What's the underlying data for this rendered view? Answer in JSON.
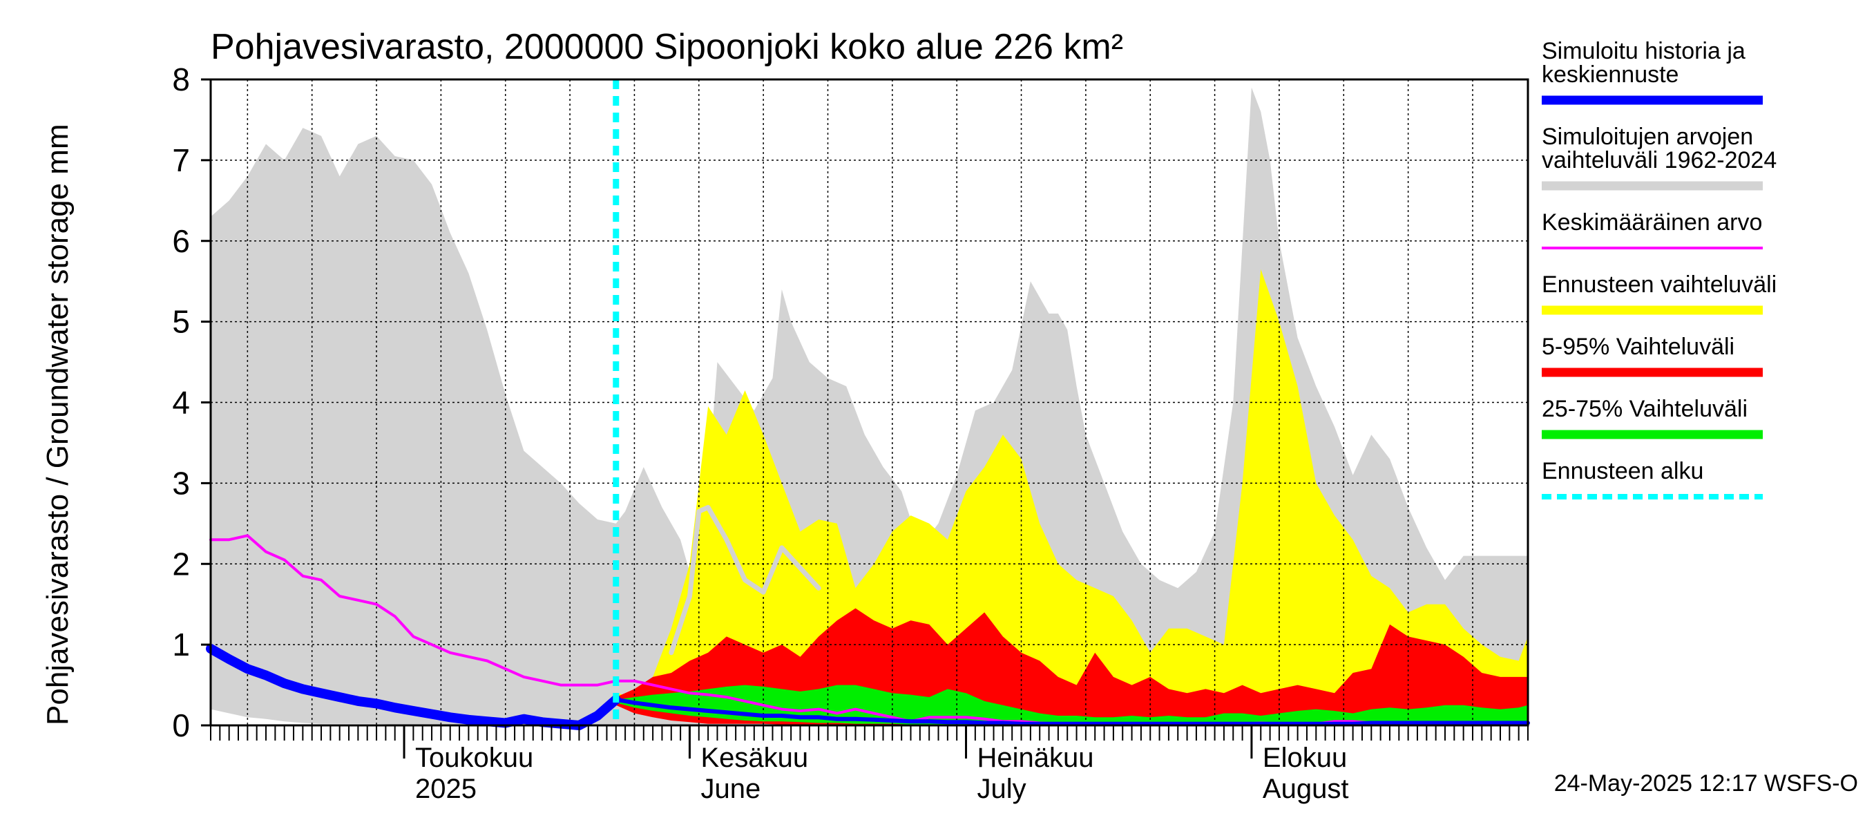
{
  "chart_data": {
    "type": "area",
    "title": "Pohjavesivarasto, 2000000 Sipoonjoki koko alue 226 km²",
    "ylabel": "Pohjavesivarasto / Groundwater storage   mm",
    "ylim": [
      0,
      8
    ],
    "yticks": [
      "0",
      "1",
      "2",
      "3",
      "4",
      "5",
      "6",
      "7",
      "8"
    ],
    "xlim": [
      "2025-04-10",
      "2025-08-31"
    ],
    "month_labels": [
      {
        "date": "2025-05-01",
        "line1": "Toukokuu",
        "line2": "2025"
      },
      {
        "date": "2025-06-01",
        "line1": "Kesäkuu",
        "line2": "June"
      },
      {
        "date": "2025-07-01",
        "line1": "Heinäkuu",
        "line2": "July"
      },
      {
        "date": "2025-08-01",
        "line1": "Elokuu",
        "line2": "August"
      }
    ],
    "forecast_start": "2025-05-24",
    "footer": "24-May-2025 12:17 WSFS-O",
    "colors": {
      "history": "#0000ff",
      "sim_range": "#d3d3d3",
      "mean": "#ff00ff",
      "forecast_range": "#ffff00",
      "p5_95": "#ff0000",
      "p25_75": "#00ee00",
      "forecast_start": "#00ffff"
    },
    "legend": [
      {
        "label": "Simuloitu historia ja",
        "label2": "keskiennuste",
        "color": "#0000ff",
        "style": "thick"
      },
      {
        "label": "Simuloitujen arvojen",
        "label2": "vaihteluväli 1962-2024",
        "color": "#d3d3d3",
        "style": "thick"
      },
      {
        "label": "Keskimääräinen arvo",
        "label2": "",
        "color": "#ff00ff",
        "style": "thin"
      },
      {
        "label": "Ennusteen vaihteluväli",
        "label2": "",
        "color": "#ffff00",
        "style": "thick"
      },
      {
        "label": "5-95% Vaihteluväli",
        "label2": "",
        "color": "#ff0000",
        "style": "thick"
      },
      {
        "label": "25-75% Vaihteluväli",
        "label2": "",
        "color": "#00ee00",
        "style": "thick"
      },
      {
        "label": "Ennusteen alku",
        "label2": "",
        "color": "#00ffff",
        "style": "dashed"
      }
    ],
    "sim_range": {
      "x": [
        "2025-04-10",
        "2025-04-12",
        "2025-04-14",
        "2025-04-16",
        "2025-04-18",
        "2025-04-20",
        "2025-04-22",
        "2025-04-24",
        "2025-04-26",
        "2025-04-28",
        "2025-04-30",
        "2025-05-02",
        "2025-05-04",
        "2025-05-06",
        "2025-05-08",
        "2025-05-10",
        "2025-05-12",
        "2025-05-14",
        "2025-05-16",
        "2025-05-18",
        "2025-05-20",
        "2025-05-22",
        "2025-05-24",
        "2025-05-25",
        "2025-05-27",
        "2025-05-29",
        "2025-05-31",
        "2025-06-02",
        "2025-06-04",
        "2025-06-06",
        "2025-06-08",
        "2025-06-10",
        "2025-06-11",
        "2025-06-12",
        "2025-06-14",
        "2025-06-16",
        "2025-06-18",
        "2025-06-20",
        "2025-06-22",
        "2025-06-24",
        "2025-06-26",
        "2025-06-28",
        "2025-06-30",
        "2025-07-02",
        "2025-07-04",
        "2025-07-06",
        "2025-07-08",
        "2025-07-10",
        "2025-07-11",
        "2025-07-12",
        "2025-07-13",
        "2025-07-14",
        "2025-07-16",
        "2025-07-18",
        "2025-07-20",
        "2025-07-22",
        "2025-07-24",
        "2025-07-26",
        "2025-07-28",
        "2025-07-30",
        "2025-08-01",
        "2025-08-02",
        "2025-08-03",
        "2025-08-04",
        "2025-08-06",
        "2025-08-08",
        "2025-08-10",
        "2025-08-12",
        "2025-08-14",
        "2025-08-16",
        "2025-08-18",
        "2025-08-20",
        "2025-08-22",
        "2025-08-24",
        "2025-08-26",
        "2025-08-28",
        "2025-08-30",
        "2025-08-31"
      ],
      "upper": [
        6.3,
        6.5,
        6.8,
        7.2,
        7.0,
        7.4,
        7.3,
        6.8,
        7.2,
        7.3,
        7.05,
        7.0,
        6.7,
        6.1,
        5.6,
        4.9,
        4.1,
        3.4,
        3.2,
        3.0,
        2.75,
        2.55,
        2.5,
        2.65,
        3.2,
        2.7,
        2.3,
        1.5,
        4.5,
        4.2,
        3.9,
        4.3,
        5.4,
        5.0,
        4.5,
        4.3,
        4.2,
        3.6,
        3.2,
        2.9,
        2.2,
        2.5,
        3.1,
        3.9,
        4.0,
        4.4,
        5.5,
        5.1,
        5.1,
        4.9,
        4.2,
        3.6,
        3.0,
        2.4,
        2.0,
        1.8,
        1.7,
        1.9,
        2.4,
        4.0,
        7.9,
        7.6,
        7.0,
        6.0,
        4.8,
        4.2,
        3.7,
        3.1,
        3.6,
        3.3,
        2.7,
        2.2,
        1.8,
        2.1,
        2.1,
        2.1,
        2.1,
        2.1
      ],
      "lower": [
        0.2,
        0.15,
        0.1,
        0.08,
        0.05,
        0.03,
        0.02,
        0.02,
        0.02,
        0.02,
        0.01,
        0.01,
        0.01,
        0.01,
        0,
        0,
        0,
        0,
        0,
        0,
        0,
        0,
        0,
        0,
        0,
        0,
        0,
        0,
        0,
        0,
        0,
        0,
        0,
        0,
        0,
        0,
        0,
        0,
        0,
        0,
        0,
        0,
        0,
        0,
        0,
        0,
        0,
        0,
        0,
        0,
        0,
        0,
        0,
        0,
        0,
        0,
        0,
        0,
        0,
        0,
        0,
        0,
        0,
        0,
        0,
        0,
        0,
        0,
        0,
        0,
        0,
        0,
        0,
        0,
        0,
        0,
        0,
        0
      ]
    },
    "mean": {
      "x": [
        "2025-04-10",
        "2025-04-12",
        "2025-04-14",
        "2025-04-16",
        "2025-04-18",
        "2025-04-20",
        "2025-04-22",
        "2025-04-24",
        "2025-04-26",
        "2025-04-28",
        "2025-04-30",
        "2025-05-02",
        "2025-05-04",
        "2025-05-06",
        "2025-05-08",
        "2025-05-10",
        "2025-05-12",
        "2025-05-14",
        "2025-05-16",
        "2025-05-18",
        "2025-05-20",
        "2025-05-22",
        "2025-05-24",
        "2025-05-26",
        "2025-05-28",
        "2025-05-30",
        "2025-06-01",
        "2025-06-03",
        "2025-06-05",
        "2025-06-07",
        "2025-06-09",
        "2025-06-11",
        "2025-06-13",
        "2025-06-15",
        "2025-06-17",
        "2025-06-19",
        "2025-06-21",
        "2025-06-23",
        "2025-06-25",
        "2025-06-27",
        "2025-06-29",
        "2025-07-01",
        "2025-07-03",
        "2025-07-05",
        "2025-07-07",
        "2025-07-09",
        "2025-07-11",
        "2025-07-13",
        "2025-07-15",
        "2025-07-17",
        "2025-07-19",
        "2025-07-21",
        "2025-07-23",
        "2025-07-25",
        "2025-07-27",
        "2025-07-29",
        "2025-07-31",
        "2025-08-02",
        "2025-08-04",
        "2025-08-06",
        "2025-08-08",
        "2025-08-10",
        "2025-08-12",
        "2025-08-14",
        "2025-08-16",
        "2025-08-18",
        "2025-08-20",
        "2025-08-22",
        "2025-08-24",
        "2025-08-26",
        "2025-08-28",
        "2025-08-30",
        "2025-08-31"
      ],
      "y": [
        2.3,
        2.3,
        2.35,
        2.15,
        2.05,
        1.85,
        1.8,
        1.6,
        1.55,
        1.5,
        1.35,
        1.1,
        1.0,
        0.9,
        0.85,
        0.8,
        0.7,
        0.6,
        0.55,
        0.5,
        0.5,
        0.5,
        0.55,
        0.55,
        0.5,
        0.45,
        0.4,
        0.38,
        0.35,
        0.3,
        0.25,
        0.2,
        0.18,
        0.2,
        0.15,
        0.2,
        0.15,
        0.1,
        0.05,
        0.1,
        0.1,
        0.1,
        0.08,
        0.05,
        0.05,
        0.03,
        0.02,
        0.02,
        0.02,
        0.02,
        0.02,
        0.02,
        0.02,
        0.02,
        0.02,
        0.02,
        0.02,
        0.03,
        0.02,
        0.02,
        0.02,
        0.05,
        0.05,
        0.03,
        0.03,
        0.02,
        0.02,
        0.02,
        0.02,
        0.02,
        0.02,
        0.02,
        0.02
      ]
    },
    "forecast_range": {
      "x": [
        "2025-05-24",
        "2025-05-26",
        "2025-05-28",
        "2025-05-30",
        "2025-06-01",
        "2025-06-03",
        "2025-06-05",
        "2025-06-07",
        "2025-06-09",
        "2025-06-11",
        "2025-06-13",
        "2025-06-15",
        "2025-06-17",
        "2025-06-19",
        "2025-06-21",
        "2025-06-23",
        "2025-06-25",
        "2025-06-27",
        "2025-06-29",
        "2025-07-01",
        "2025-07-03",
        "2025-07-05",
        "2025-07-07",
        "2025-07-09",
        "2025-07-11",
        "2025-07-13",
        "2025-07-15",
        "2025-07-17",
        "2025-07-19",
        "2025-07-21",
        "2025-07-23",
        "2025-07-25",
        "2025-07-27",
        "2025-07-29",
        "2025-07-31",
        "2025-08-02",
        "2025-08-04",
        "2025-08-06",
        "2025-08-08",
        "2025-08-10",
        "2025-08-12",
        "2025-08-14",
        "2025-08-16",
        "2025-08-18",
        "2025-08-20",
        "2025-08-22",
        "2025-08-24",
        "2025-08-26",
        "2025-08-28",
        "2025-08-30",
        "2025-08-31"
      ],
      "upper": [
        0.4,
        0.35,
        0.6,
        1.2,
        2.0,
        3.95,
        3.6,
        4.15,
        3.6,
        3.0,
        2.4,
        2.55,
        2.5,
        1.7,
        2.0,
        2.4,
        2.6,
        2.5,
        2.3,
        2.9,
        3.2,
        3.6,
        3.3,
        2.5,
        2.0,
        1.8,
        1.7,
        1.6,
        1.3,
        0.9,
        1.2,
        1.2,
        1.1,
        1.0,
        3.0,
        5.65,
        5.0,
        4.2,
        3.0,
        2.6,
        2.3,
        1.85,
        1.7,
        1.4,
        1.5,
        1.5,
        1.2,
        1.0,
        0.85,
        0.8,
        1.1
      ],
      "lower": [
        0.3,
        0.25,
        0.2,
        0.15,
        0.1,
        0.08,
        0.05,
        0.03,
        0.03,
        0.02,
        0.02,
        0.02,
        0.02,
        0.01,
        0.01,
        0.01,
        0.01,
        0.01,
        0.01,
        0,
        0,
        0,
        0,
        0,
        0,
        0,
        0,
        0,
        0,
        0,
        0,
        0,
        0,
        0,
        0,
        0,
        0,
        0,
        0,
        0,
        0,
        0,
        0,
        0,
        0,
        0,
        0,
        0,
        0,
        0,
        0
      ]
    },
    "band_5_95": {
      "x": [
        "2025-05-24",
        "2025-05-26",
        "2025-05-28",
        "2025-05-30",
        "2025-06-01",
        "2025-06-03",
        "2025-06-05",
        "2025-06-07",
        "2025-06-09",
        "2025-06-11",
        "2025-06-13",
        "2025-06-15",
        "2025-06-17",
        "2025-06-19",
        "2025-06-21",
        "2025-06-23",
        "2025-06-25",
        "2025-06-27",
        "2025-06-29",
        "2025-07-01",
        "2025-07-03",
        "2025-07-05",
        "2025-07-07",
        "2025-07-09",
        "2025-07-11",
        "2025-07-13",
        "2025-07-15",
        "2025-07-17",
        "2025-07-19",
        "2025-07-21",
        "2025-07-23",
        "2025-07-25",
        "2025-07-27",
        "2025-07-29",
        "2025-07-31",
        "2025-08-02",
        "2025-08-04",
        "2025-08-06",
        "2025-08-08",
        "2025-08-10",
        "2025-08-12",
        "2025-08-14",
        "2025-08-16",
        "2025-08-18",
        "2025-08-20",
        "2025-08-22",
        "2025-08-24",
        "2025-08-26",
        "2025-08-28",
        "2025-08-30",
        "2025-08-31"
      ],
      "upper": [
        0.35,
        0.45,
        0.6,
        0.65,
        0.8,
        0.9,
        1.1,
        1.0,
        0.9,
        1.0,
        0.85,
        1.1,
        1.3,
        1.45,
        1.3,
        1.2,
        1.3,
        1.25,
        1.0,
        1.2,
        1.4,
        1.1,
        0.9,
        0.8,
        0.6,
        0.5,
        0.9,
        0.6,
        0.5,
        0.6,
        0.45,
        0.4,
        0.45,
        0.4,
        0.5,
        0.4,
        0.45,
        0.5,
        0.45,
        0.4,
        0.65,
        0.7,
        1.25,
        1.1,
        1.05,
        1.0,
        0.85,
        0.65,
        0.6,
        0.6,
        0.6
      ],
      "lower": [
        0.25,
        0.15,
        0.1,
        0.06,
        0.04,
        0.02,
        0.02,
        0.02,
        0.02,
        0.01,
        0.01,
        0.01,
        0.01,
        0.01,
        0.01,
        0.01,
        0,
        0,
        0,
        0,
        0,
        0,
        0,
        0,
        0,
        0,
        0,
        0,
        0,
        0,
        0,
        0,
        0,
        0,
        0,
        0,
        0,
        0,
        0,
        0,
        0,
        0,
        0,
        0,
        0,
        0,
        0,
        0,
        0,
        0,
        0
      ]
    },
    "band_25_75": {
      "x": [
        "2025-05-24",
        "2025-05-26",
        "2025-05-28",
        "2025-05-30",
        "2025-06-01",
        "2025-06-03",
        "2025-06-05",
        "2025-06-07",
        "2025-06-09",
        "2025-06-11",
        "2025-06-13",
        "2025-06-15",
        "2025-06-17",
        "2025-06-19",
        "2025-06-21",
        "2025-06-23",
        "2025-06-25",
        "2025-06-27",
        "2025-06-29",
        "2025-07-01",
        "2025-07-03",
        "2025-07-05",
        "2025-07-07",
        "2025-07-09",
        "2025-07-11",
        "2025-07-13",
        "2025-07-15",
        "2025-07-17",
        "2025-07-19",
        "2025-07-21",
        "2025-07-23",
        "2025-07-25",
        "2025-07-27",
        "2025-07-29",
        "2025-07-31",
        "2025-08-02",
        "2025-08-04",
        "2025-08-06",
        "2025-08-08",
        "2025-08-10",
        "2025-08-12",
        "2025-08-14",
        "2025-08-16",
        "2025-08-18",
        "2025-08-20",
        "2025-08-22",
        "2025-08-24",
        "2025-08-26",
        "2025-08-28",
        "2025-08-30",
        "2025-08-31"
      ],
      "upper": [
        0.32,
        0.35,
        0.38,
        0.4,
        0.42,
        0.45,
        0.48,
        0.5,
        0.48,
        0.45,
        0.42,
        0.45,
        0.5,
        0.5,
        0.45,
        0.4,
        0.38,
        0.35,
        0.45,
        0.4,
        0.3,
        0.25,
        0.2,
        0.15,
        0.12,
        0.12,
        0.1,
        0.1,
        0.12,
        0.1,
        0.12,
        0.1,
        0.1,
        0.15,
        0.15,
        0.12,
        0.15,
        0.18,
        0.2,
        0.18,
        0.15,
        0.2,
        0.22,
        0.2,
        0.22,
        0.25,
        0.25,
        0.22,
        0.2,
        0.22,
        0.25
      ],
      "lower": [
        0.28,
        0.22,
        0.18,
        0.15,
        0.12,
        0.1,
        0.08,
        0.06,
        0.05,
        0.05,
        0.04,
        0.03,
        0.03,
        0.02,
        0.02,
        0.02,
        0.01,
        0.01,
        0.01,
        0,
        0,
        0,
        0,
        0,
        0,
        0,
        0,
        0,
        0,
        0,
        0,
        0,
        0,
        0,
        0,
        0,
        0,
        0,
        0,
        0,
        0,
        0,
        0,
        0,
        0,
        0,
        0,
        0,
        0,
        0,
        0
      ]
    },
    "history": {
      "x": [
        "2025-04-10",
        "2025-04-12",
        "2025-04-14",
        "2025-04-16",
        "2025-04-18",
        "2025-04-20",
        "2025-04-22",
        "2025-04-24",
        "2025-04-26",
        "2025-04-28",
        "2025-04-30",
        "2025-05-02",
        "2025-05-04",
        "2025-05-06",
        "2025-05-08",
        "2025-05-10",
        "2025-05-12",
        "2025-05-14",
        "2025-05-16",
        "2025-05-18",
        "2025-05-20",
        "2025-05-22",
        "2025-05-24"
      ],
      "y": [
        0.95,
        0.82,
        0.7,
        0.62,
        0.52,
        0.45,
        0.4,
        0.35,
        0.3,
        0.27,
        0.22,
        0.18,
        0.14,
        0.1,
        0.07,
        0.05,
        0.03,
        0.08,
        0.04,
        0.02,
        0.0,
        0.12,
        0.32
      ]
    },
    "forecast_mean": {
      "x": [
        "2025-05-24",
        "2025-05-26",
        "2025-05-28",
        "2025-05-30",
        "2025-06-01",
        "2025-06-03",
        "2025-06-05",
        "2025-06-07",
        "2025-06-09",
        "2025-06-11",
        "2025-06-13",
        "2025-06-15",
        "2025-06-17",
        "2025-06-19",
        "2025-06-21",
        "2025-06-23",
        "2025-06-25",
        "2025-06-27",
        "2025-06-29",
        "2025-07-01",
        "2025-07-03",
        "2025-07-05",
        "2025-07-07",
        "2025-07-09",
        "2025-07-11",
        "2025-07-13",
        "2025-07-15",
        "2025-07-17",
        "2025-07-19",
        "2025-07-21",
        "2025-07-23",
        "2025-07-25",
        "2025-07-27",
        "2025-07-29",
        "2025-07-31",
        "2025-08-02",
        "2025-08-04",
        "2025-08-06",
        "2025-08-08",
        "2025-08-10",
        "2025-08-12",
        "2025-08-14",
        "2025-08-16",
        "2025-08-18",
        "2025-08-20",
        "2025-08-22",
        "2025-08-24",
        "2025-08-26",
        "2025-08-28",
        "2025-08-30",
        "2025-08-31"
      ],
      "y": [
        0.32,
        0.28,
        0.25,
        0.22,
        0.2,
        0.18,
        0.16,
        0.14,
        0.12,
        0.12,
        0.1,
        0.1,
        0.08,
        0.08,
        0.07,
        0.06,
        0.05,
        0.05,
        0.04,
        0.04,
        0.03,
        0.03,
        0.02,
        0.02,
        0.02,
        0.02,
        0.02,
        0.02,
        0.02,
        0.02,
        0.02,
        0.02,
        0.02,
        0.02,
        0.02,
        0.02,
        0.02,
        0.02,
        0.02,
        0.02,
        0.02,
        0.03,
        0.03,
        0.03,
        0.03,
        0.03,
        0.03,
        0.03,
        0.03,
        0.03,
        0.03
      ]
    },
    "wide_member": {
      "x": [
        "2025-05-30",
        "2025-06-01",
        "2025-06-02",
        "2025-06-03",
        "2025-06-05",
        "2025-06-07",
        "2025-06-09",
        "2025-06-11",
        "2025-06-13",
        "2025-06-15"
      ],
      "y": [
        0.9,
        1.6,
        2.65,
        2.7,
        2.3,
        1.8,
        1.65,
        2.2,
        1.95,
        1.7
      ]
    }
  }
}
